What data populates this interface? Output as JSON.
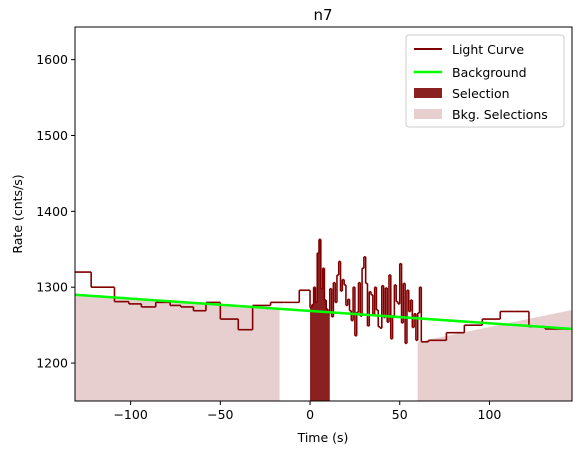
{
  "chart_data": {
    "type": "line",
    "title": "n7",
    "xlabel": "Time (s)",
    "ylabel": "Rate (cnts/s)",
    "xlim": [
      -131,
      146
    ],
    "ylim": [
      1150,
      1643
    ],
    "xticks": [
      -100,
      -50,
      0,
      50,
      100
    ],
    "yticks": [
      1200,
      1300,
      1400,
      1500,
      1600
    ],
    "xtick_labels": [
      "−100",
      "−50",
      "0",
      "50",
      "100"
    ],
    "ytick_labels": [
      "1200",
      "1300",
      "1400",
      "1500",
      "1600"
    ],
    "legend": {
      "placement": "top-right",
      "entries": [
        "Light Curve",
        "Background",
        "Selection",
        "Bkg. Selections"
      ]
    },
    "colors": {
      "light_curve": "#800000",
      "background": "#00ff00",
      "selection": "#8b2020",
      "bkg_selection": "#e8cfcf"
    },
    "light_curve": {
      "edges": [
        -131,
        -122,
        -109,
        -101,
        -94,
        -86,
        -78,
        -72,
        -65,
        -58,
        -50,
        -40,
        -32,
        -22,
        -15,
        -6,
        0,
        1,
        2,
        3,
        4,
        5,
        6,
        7,
        8,
        9,
        10,
        11,
        12,
        13,
        14,
        15,
        16,
        17,
        18,
        19,
        20,
        21,
        22,
        23,
        24,
        25,
        26,
        27,
        28,
        29,
        30,
        31,
        32,
        33,
        34,
        35,
        36,
        37,
        38,
        39,
        40,
        41,
        42,
        43,
        44,
        45,
        46,
        47,
        48,
        49,
        50,
        51,
        52,
        53,
        54,
        55,
        56,
        57,
        58,
        59,
        60,
        61,
        62,
        66,
        76,
        86,
        96,
        106,
        114,
        122,
        131,
        146
      ],
      "rates": [
        1320,
        1300,
        1281,
        1278,
        1274,
        1280,
        1276,
        1274,
        1269,
        1280,
        1258,
        1244,
        1276,
        1280,
        1280,
        1296,
        1273,
        1277,
        1300,
        1280,
        1345,
        1363,
        1298,
        1325,
        1283,
        1271,
        1265,
        1298,
        1261,
        1306,
        1280,
        1316,
        1334,
        1295,
        1310,
        1303,
        1276,
        1284,
        1269,
        1256,
        1300,
        1236,
        1267,
        1306,
        1262,
        1325,
        1340,
        1305,
        1249,
        1294,
        1290,
        1264,
        1300,
        1270,
        1248,
        1246,
        1302,
        1260,
        1299,
        1254,
        1316,
        1232,
        1262,
        1303,
        1281,
        1278,
        1331,
        1253,
        1305,
        1226,
        1296,
        1268,
        1283,
        1247,
        1265,
        1230,
        1266,
        1300,
        1228,
        1230,
        1240,
        1250,
        1258,
        1268,
        1268,
        1248,
        1245
      ]
    },
    "background": {
      "x": [
        -131,
        146
      ],
      "y": [
        1290,
        1245
      ]
    },
    "selection": {
      "x": [
        0,
        11
      ]
    },
    "bkg_selections": [
      {
        "x": [
          -131,
          -17
        ],
        "y": [
          1290,
          1272
        ]
      },
      {
        "x": [
          60,
          146
        ],
        "y": [
          1228,
          1270
        ]
      }
    ]
  }
}
